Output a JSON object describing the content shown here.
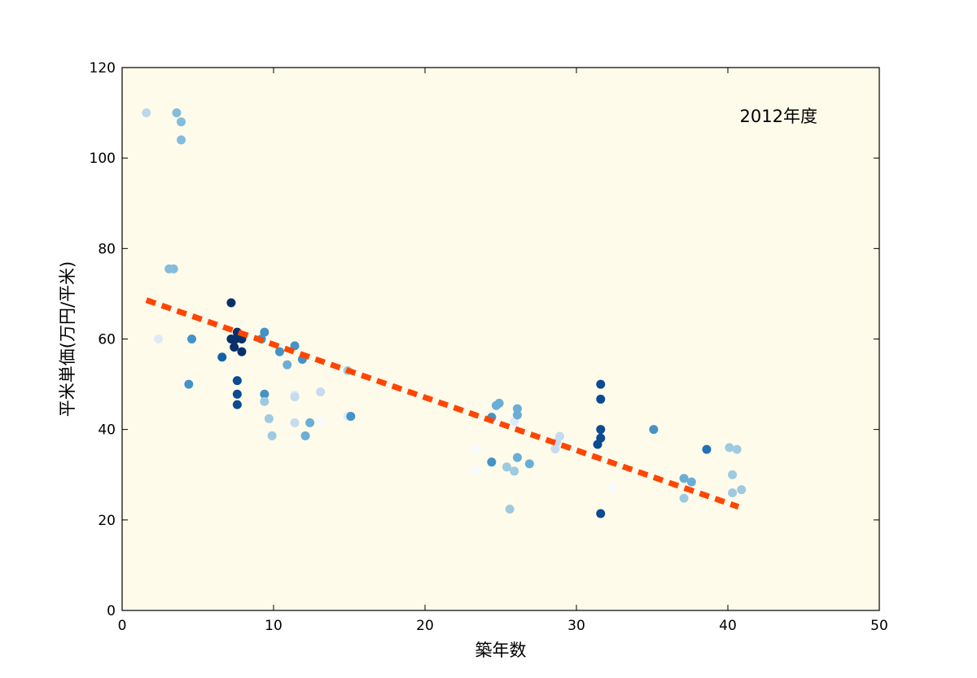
{
  "chart_data": {
    "type": "scatter",
    "title": "",
    "xlabel": "築年数",
    "ylabel": "平米単価(万円/平米)",
    "annotation": "2012年度",
    "annotation_position": "top-right",
    "xlim": [
      0,
      50
    ],
    "ylim": [
      0,
      120
    ],
    "xticks": [
      0,
      10,
      20,
      30,
      40,
      50
    ],
    "yticks": [
      0,
      20,
      40,
      60,
      80,
      100,
      120
    ],
    "grid": false,
    "plot_background": "#fefbeb",
    "trendline": {
      "style": "dashed",
      "color": "#ff4500",
      "x": [
        1.6,
        40.7
      ],
      "y": [
        68.6,
        22.9
      ]
    },
    "points": [
      {
        "x": 1.6,
        "y": 110,
        "color": "#bcd7eb"
      },
      {
        "x": 3.6,
        "y": 110,
        "color": "#84bcdc"
      },
      {
        "x": 3.9,
        "y": 108,
        "color": "#84bcdc"
      },
      {
        "x": 3.9,
        "y": 104,
        "color": "#84bcdc"
      },
      {
        "x": 3.1,
        "y": 75.5,
        "color": "#84bcdc"
      },
      {
        "x": 3.4,
        "y": 75.5,
        "color": "#84bcdc"
      },
      {
        "x": 2.4,
        "y": 60,
        "color": "#deebf7"
      },
      {
        "x": 4.6,
        "y": 60,
        "color": "#4393c6"
      },
      {
        "x": 4.4,
        "y": 50,
        "color": "#4393c6"
      },
      {
        "x": 6.6,
        "y": 56,
        "color": "#1561a8"
      },
      {
        "x": 7.2,
        "y": 68,
        "color": "#08306b"
      },
      {
        "x": 7.2,
        "y": 60,
        "color": "#08306b"
      },
      {
        "x": 7.6,
        "y": 61.5,
        "color": "#08306b"
      },
      {
        "x": 7.5,
        "y": 60,
        "color": "#08306b"
      },
      {
        "x": 7.9,
        "y": 60,
        "color": "#08306b"
      },
      {
        "x": 7.4,
        "y": 58.2,
        "color": "#08306b"
      },
      {
        "x": 7.9,
        "y": 57.2,
        "color": "#08306b"
      },
      {
        "x": 7.6,
        "y": 50.8,
        "color": "#0c4a92"
      },
      {
        "x": 7.6,
        "y": 47.8,
        "color": "#0c4a92"
      },
      {
        "x": 7.6,
        "y": 45.5,
        "color": "#0c4a92"
      },
      {
        "x": 9.4,
        "y": 61.5,
        "color": "#4393c6"
      },
      {
        "x": 9.2,
        "y": 60,
        "color": "#4393c6"
      },
      {
        "x": 9.4,
        "y": 47.8,
        "color": "#4393c6"
      },
      {
        "x": 9.4,
        "y": 46.2,
        "color": "#9ecae1"
      },
      {
        "x": 9.7,
        "y": 42.4,
        "color": "#9ecae1"
      },
      {
        "x": 9.9,
        "y": 38.6,
        "color": "#9ecae1"
      },
      {
        "x": 10.4,
        "y": 57.2,
        "color": "#4393c6"
      },
      {
        "x": 10.9,
        "y": 54.3,
        "color": "#6aaed6"
      },
      {
        "x": 11.4,
        "y": 58.5,
        "color": "#4393c6"
      },
      {
        "x": 11.4,
        "y": 47.6,
        "color": "#deebf7"
      },
      {
        "x": 11.4,
        "y": 47.2,
        "color": "#c6dbef"
      },
      {
        "x": 11.4,
        "y": 41.5,
        "color": "#c6dbef"
      },
      {
        "x": 11.9,
        "y": 55.5,
        "color": "#4393c6"
      },
      {
        "x": 12.1,
        "y": 38.6,
        "color": "#6aaed6"
      },
      {
        "x": 12.4,
        "y": 41.5,
        "color": "#6aaed6"
      },
      {
        "x": 13.1,
        "y": 48.3,
        "color": "#c6dbef"
      },
      {
        "x": 13.1,
        "y": 41.8,
        "color": "#f7fbff"
      },
      {
        "x": 14.9,
        "y": 53,
        "color": "#9ecae1"
      },
      {
        "x": 14.9,
        "y": 42.9,
        "color": "#deebf7"
      },
      {
        "x": 15.1,
        "y": 42.9,
        "color": "#4393c6"
      },
      {
        "x": 23.3,
        "y": 31,
        "color": "#f7fbff"
      },
      {
        "x": 23.4,
        "y": 35.7,
        "color": "#f7fbff"
      },
      {
        "x": 24.4,
        "y": 42.7,
        "color": "#4393c6"
      },
      {
        "x": 24.4,
        "y": 32.8,
        "color": "#4393c6"
      },
      {
        "x": 24.7,
        "y": 45.3,
        "color": "#6aaed6"
      },
      {
        "x": 24.9,
        "y": 45.8,
        "color": "#6aaed6"
      },
      {
        "x": 25.4,
        "y": 31.7,
        "color": "#9ecae1"
      },
      {
        "x": 25.6,
        "y": 22.4,
        "color": "#9ecae1"
      },
      {
        "x": 25.9,
        "y": 30.8,
        "color": "#9ecae1"
      },
      {
        "x": 25.9,
        "y": 41.8,
        "color": "#deebf7"
      },
      {
        "x": 26.1,
        "y": 44.6,
        "color": "#6aaed6"
      },
      {
        "x": 26.1,
        "y": 43.2,
        "color": "#6aaed6"
      },
      {
        "x": 26.1,
        "y": 33.8,
        "color": "#6aaed6"
      },
      {
        "x": 26.9,
        "y": 32.4,
        "color": "#6aaed6"
      },
      {
        "x": 28.6,
        "y": 35.7,
        "color": "#c6dbef"
      },
      {
        "x": 28.7,
        "y": 37.2,
        "color": "#c6dbef"
      },
      {
        "x": 28.9,
        "y": 38.5,
        "color": "#c6dbef"
      },
      {
        "x": 31.4,
        "y": 36.7,
        "color": "#0c4a92"
      },
      {
        "x": 31.6,
        "y": 50,
        "color": "#0c4a92"
      },
      {
        "x": 31.6,
        "y": 46.7,
        "color": "#0c4a92"
      },
      {
        "x": 31.6,
        "y": 40,
        "color": "#0c4a92"
      },
      {
        "x": 31.6,
        "y": 38.1,
        "color": "#0c4a92"
      },
      {
        "x": 31.6,
        "y": 21.4,
        "color": "#0c4a92"
      },
      {
        "x": 32.4,
        "y": 27.2,
        "color": "#f7fbff"
      },
      {
        "x": 35.1,
        "y": 40,
        "color": "#4393c6"
      },
      {
        "x": 37.1,
        "y": 29.2,
        "color": "#6aaed6"
      },
      {
        "x": 37.1,
        "y": 24.8,
        "color": "#9ecae1"
      },
      {
        "x": 37.6,
        "y": 28.4,
        "color": "#6aaed6"
      },
      {
        "x": 38.6,
        "y": 35.6,
        "color": "#2171b5"
      },
      {
        "x": 40.1,
        "y": 36,
        "color": "#9ecae1"
      },
      {
        "x": 40.3,
        "y": 30,
        "color": "#9ecae1"
      },
      {
        "x": 40.3,
        "y": 26,
        "color": "#9ecae1"
      },
      {
        "x": 40.6,
        "y": 35.6,
        "color": "#9ecae1"
      },
      {
        "x": 40.9,
        "y": 26.7,
        "color": "#9ecae1"
      }
    ]
  }
}
